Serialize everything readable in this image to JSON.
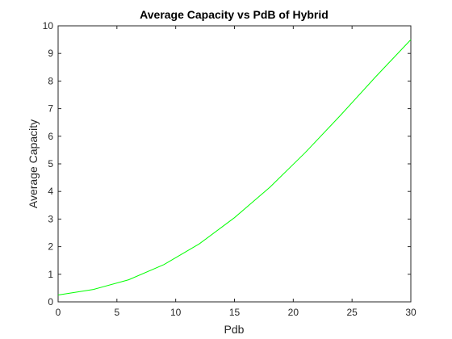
{
  "chart_data": {
    "type": "line",
    "title": "Average Capacity vs PdB of Hybrid",
    "xlabel": "Pdb",
    "ylabel": "Average Capacity",
    "xlim": [
      0,
      30
    ],
    "ylim": [
      0,
      10
    ],
    "xticks": [
      0,
      5,
      10,
      15,
      20,
      25,
      30
    ],
    "yticks": [
      0,
      1,
      2,
      3,
      4,
      5,
      6,
      7,
      8,
      9,
      10
    ],
    "grid": false,
    "legend": "none",
    "series": [
      {
        "color": "#00ff00",
        "x": [
          0,
          3,
          6,
          9,
          12,
          15,
          18,
          21,
          24,
          27,
          30
        ],
        "y": [
          0.25,
          0.45,
          0.8,
          1.35,
          2.1,
          3.05,
          4.15,
          5.4,
          6.75,
          8.15,
          9.5
        ]
      }
    ]
  }
}
